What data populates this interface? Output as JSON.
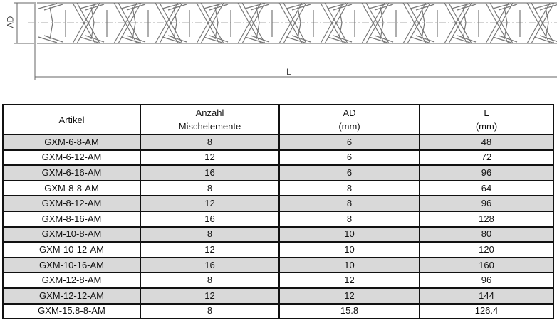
{
  "drawing": {
    "dim_ad_label": "AD",
    "dim_l_label": "L"
  },
  "table": {
    "headers": [
      {
        "line1": "Artikel",
        "line2": ""
      },
      {
        "line1": "Anzahl",
        "line2": "Mischelemente"
      },
      {
        "line1": "AD",
        "line2": "(mm)"
      },
      {
        "line1": "L",
        "line2": "(mm)"
      }
    ],
    "rows": [
      [
        "GXM-6-8-AM",
        "8",
        "6",
        "48"
      ],
      [
        "GXM-6-12-AM",
        "12",
        "6",
        "72"
      ],
      [
        "GXM-6-16-AM",
        "16",
        "6",
        "96"
      ],
      [
        "GXM-8-8-AM",
        "8",
        "8",
        "64"
      ],
      [
        "GXM-8-12-AM",
        "12",
        "8",
        "96"
      ],
      [
        "GXM-8-16-AM",
        "16",
        "8",
        "128"
      ],
      [
        "GXM-10-8-AM",
        "8",
        "10",
        "80"
      ],
      [
        "GXM-10-12-AM",
        "12",
        "10",
        "120"
      ],
      [
        "GXM-10-16-AM",
        "16",
        "10",
        "160"
      ],
      [
        "GXM-12-8-AM",
        "8",
        "12",
        "96"
      ],
      [
        "GXM-12-12-AM",
        "12",
        "12",
        "144"
      ],
      [
        "GXM-15.8-8-AM",
        "8",
        "15.8",
        "126.4"
      ]
    ],
    "shaded_row_color": "#d9d9d9"
  }
}
